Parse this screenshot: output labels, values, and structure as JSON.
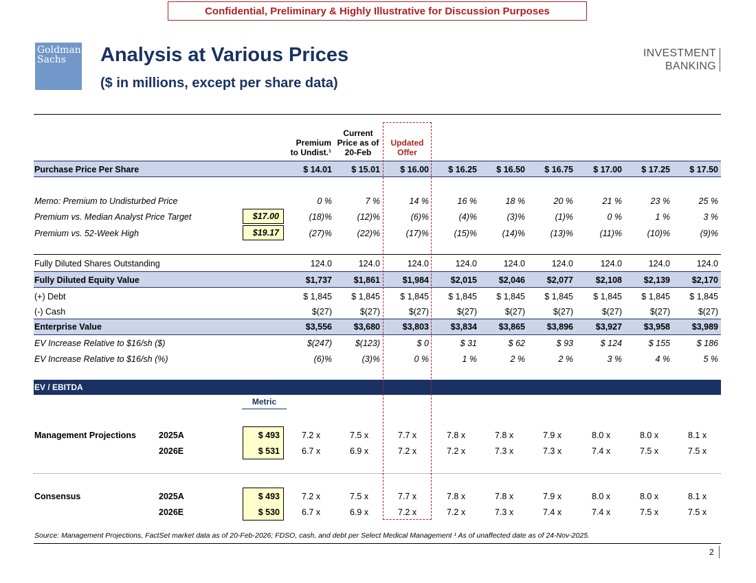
{
  "banner": "Confidential, Preliminary & Highly Illustrative for Discussion Purposes",
  "logo": {
    "line1": "Goldman",
    "line2": "Sachs"
  },
  "title": "Analysis at Various Prices",
  "subtitle": "($ in millions, except per share data)",
  "brand": {
    "line1": "INVESTMENT",
    "line2": "BANKING"
  },
  "headers": {
    "premium": [
      "Premium",
      "to Undist.¹"
    ],
    "current": [
      "Current",
      "Price as of",
      "20-Feb"
    ],
    "offer": [
      "Updated",
      "Offer"
    ]
  },
  "rows": {
    "purchase": {
      "label": "Purchase Price Per Share",
      "values": [
        "$ 14.01",
        "$ 15.01",
        "$ 16.00",
        "$ 16.25",
        "$ 16.50",
        "$ 16.75",
        "$ 17.00",
        "$ 17.25",
        "$ 17.50"
      ]
    },
    "memo_undisturbed": {
      "label": "Memo: Premium to Undisturbed Price",
      "values": [
        "0 %",
        "7 %",
        "14 %",
        "16 %",
        "18 %",
        "20 %",
        "21 %",
        "23 %",
        "25 %"
      ]
    },
    "premium_target": {
      "label": "Premium vs. Median Analyst Price Target",
      "box": "$17.00",
      "values": [
        "(18)%",
        "(12)%",
        "(6)%",
        "(4)%",
        "(3)%",
        "(1)%",
        "0 %",
        "1 %",
        "3 %"
      ]
    },
    "premium_high": {
      "label": "Premium vs. 52-Week High",
      "box": "$19.17",
      "values": [
        "(27)%",
        "(22)%",
        "(17)%",
        "(15)%",
        "(14)%",
        "(13)%",
        "(11)%",
        "(10)%",
        "(9)%"
      ]
    },
    "shares": {
      "label": "Fully Diluted Shares Outstanding",
      "values": [
        "124.0",
        "124.0",
        "124.0",
        "124.0",
        "124.0",
        "124.0",
        "124.0",
        "124.0",
        "124.0"
      ]
    },
    "equity": {
      "label": "Fully Diluted Equity Value",
      "values": [
        "$1,737",
        "$1,861",
        "$1,984",
        "$2,015",
        "$2,046",
        "$2,077",
        "$2,108",
        "$2,139",
        "$2,170"
      ]
    },
    "debt": {
      "label": "(+) Debt",
      "values": [
        "$ 1,845",
        "$ 1,845",
        "$ 1,845",
        "$ 1,845",
        "$ 1,845",
        "$ 1,845",
        "$ 1,845",
        "$ 1,845",
        "$ 1,845"
      ]
    },
    "cash": {
      "label": "(-) Cash",
      "values": [
        "$(27)",
        "$(27)",
        "$(27)",
        "$(27)",
        "$(27)",
        "$(27)",
        "$(27)",
        "$(27)",
        "$(27)"
      ]
    },
    "ev": {
      "label": "Enterprise Value",
      "values": [
        "$3,556",
        "$3,680",
        "$3,803",
        "$3,834",
        "$3,865",
        "$3,896",
        "$3,927",
        "$3,958",
        "$3,989"
      ]
    },
    "ev_inc_dollar": {
      "label": "EV Increase Relative to $16/sh ($)",
      "values": [
        "$(247)",
        "$(123)",
        "$ 0",
        "$ 31",
        "$ 62",
        "$ 93",
        "$ 124",
        "$ 155",
        "$ 186"
      ]
    },
    "ev_inc_pct": {
      "label": "EV Increase Relative to $16/sh (%)",
      "values": [
        "(6)%",
        "(3)%",
        "0 %",
        "1 %",
        "2 %",
        "2 %",
        "3 %",
        "4 %",
        "5 %"
      ]
    }
  },
  "ebitda": {
    "section_label": "EV / EBITDA",
    "metric_header": "Metric",
    "groups": [
      {
        "label": "Management Projections",
        "rows": [
          {
            "year": "2025A",
            "metric": "$ 493",
            "values": [
              "7.2 x",
              "7.5 x",
              "7.7 x",
              "7.8 x",
              "7.8 x",
              "7.9 x",
              "8.0 x",
              "8.0 x",
              "8.1 x"
            ]
          },
          {
            "year": "2026E",
            "metric": "$ 531",
            "values": [
              "6.7 x",
              "6.9 x",
              "7.2 x",
              "7.2 x",
              "7.3 x",
              "7.3 x",
              "7.4 x",
              "7.5 x",
              "7.5 x"
            ]
          }
        ]
      },
      {
        "label": "Consensus",
        "rows": [
          {
            "year": "2025A",
            "metric": "$ 493",
            "values": [
              "7.2 x",
              "7.5 x",
              "7.7 x",
              "7.8 x",
              "7.8 x",
              "7.9 x",
              "8.0 x",
              "8.0 x",
              "8.1 x"
            ]
          },
          {
            "year": "2026E",
            "metric": "$ 530",
            "values": [
              "6.7 x",
              "6.9 x",
              "7.2 x",
              "7.2 x",
              "7.3 x",
              "7.4 x",
              "7.4 x",
              "7.5 x",
              "7.5 x"
            ]
          }
        ]
      }
    ]
  },
  "footer": {
    "source": "Source: Management Projections, FactSet market data as of 20-Feb-2026; FDSO, cash, and debt per Select Medical Management ¹ As of unaffected date as of 24-Nov-2025.",
    "page": "2"
  }
}
